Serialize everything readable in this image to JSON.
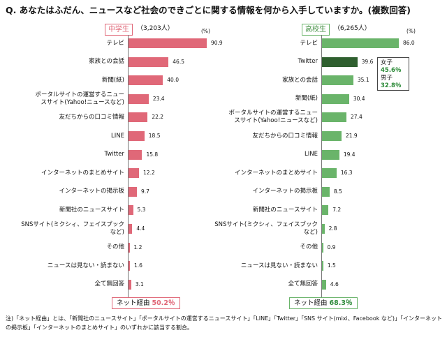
{
  "title": "Q. あなたはふだん、ニュースなど社会のできごとに関する情報を何から入手していますか。(複数回答)",
  "chart_data": [
    {
      "type": "bar",
      "orientation": "horizontal",
      "group": "中学生",
      "count": "（3,203人）",
      "unit": "(%)",
      "xlim": [
        0,
        100
      ],
      "color": "#e06878",
      "categories": [
        "テレビ",
        "家族との会話",
        "新聞(紙)",
        "ポータルサイトの運営するニュースサイト(Yahoo!ニュースなど)",
        "友だちからの口コミ情報",
        "LINE",
        "Twitter",
        "インターネットのまとめサイト",
        "インターネットの掲示板",
        "新聞社のニュースサイト",
        "SNSサイト(ミクシィ、フェイスブックなど)",
        "その他",
        "ニュースは見ない・読まない",
        "全て無回答"
      ],
      "labels": [
        [
          "テレビ"
        ],
        [
          "家族との会話"
        ],
        [
          "新聞(紙)"
        ],
        [
          "ポータルサイトの運営するニュー",
          "スサイト(Yahoo!ニュースなど)"
        ],
        [
          "友だちからの口コミ情報"
        ],
        [
          "LINE"
        ],
        [
          "Twitter"
        ],
        [
          "インターネットのまとめサイト"
        ],
        [
          "インターネットの掲示板"
        ],
        [
          "新聞社のニュースサイト"
        ],
        [
          "SNSサイト(ミクシィ、フェイスブック",
          "など)"
        ],
        [
          "その他"
        ],
        [
          "ニュースは見ない・読まない"
        ],
        [
          "全て無回答"
        ]
      ],
      "values": [
        90.9,
        46.5,
        40.0,
        23.4,
        22.2,
        18.5,
        15.8,
        12.2,
        9.7,
        5.3,
        4.4,
        1.2,
        1.6,
        3.1
      ],
      "value_labels": [
        "90.9",
        "46.5",
        "40.0",
        "23.4",
        "22.2",
        "18.5",
        "15.8",
        "12.2",
        "9.7",
        "5.3",
        "4.4",
        "1.2",
        "1.6",
        "3.1"
      ],
      "net": {
        "label": "ネット経由",
        "value": "50.2％"
      }
    },
    {
      "type": "bar",
      "orientation": "horizontal",
      "group": "高校生",
      "count": "（6,265人）",
      "unit": "(%)",
      "xlim": [
        0,
        100
      ],
      "color": "#6ab46a",
      "highlight_color": "#2f5f2f",
      "highlight_index": 1,
      "categories": [
        "テレビ",
        "Twitter",
        "家族との会話",
        "新聞(紙)",
        "ポータルサイトの運営するニュースサイト(Yahoo!ニュースなど)",
        "友だちからの口コミ情報",
        "LINE",
        "インターネットのまとめサイト",
        "インターネットの掲示板",
        "新聞社のニュースサイト",
        "SNSサイト(ミクシィ、フェイスブックなど)",
        "その他",
        "ニュースは見ない・読まない",
        "全て無回答"
      ],
      "labels": [
        [
          "テレビ"
        ],
        [
          "Twitter"
        ],
        [
          "家族との会話"
        ],
        [
          "新聞(紙)"
        ],
        [
          "ポータルサイトの運営するニュー",
          "スサイト(Yahoo!ニュースなど)"
        ],
        [
          "友だちからの口コミ情報"
        ],
        [
          "LINE"
        ],
        [
          "インターネットのまとめサイト"
        ],
        [
          "インターネットの掲示板"
        ],
        [
          "新聞社のニュースサイト"
        ],
        [
          "SNSサイト(ミクシィ、フェイスブック",
          "など)"
        ],
        [
          "その他"
        ],
        [
          "ニュースは見ない・読まない"
        ],
        [
          "全て無回答"
        ]
      ],
      "values": [
        86.0,
        39.6,
        35.1,
        30.4,
        27.4,
        21.9,
        19.4,
        16.3,
        8.5,
        7.2,
        2.8,
        0.9,
        1.5,
        4.6
      ],
      "value_labels": [
        "86.0",
        "39.6",
        "35.1",
        "30.4",
        "27.4",
        "21.9",
        "19.4",
        "16.3",
        "8.5",
        "7.2",
        "2.8",
        "0.9",
        "1.5",
        "4.6"
      ],
      "net": {
        "label": "ネット経由",
        "value": "68.3％"
      }
    }
  ],
  "callout": {
    "female_label": "女子",
    "female_value": "45.6％",
    "male_label": "男子",
    "male_value": "32.8％"
  },
  "note": "注)「ネット経由」とは、「新聞社のニュースサイト」「ポータルサイトの運営するニュースサイト」「LINE」「Twitter」「SNS サイト(mixi、Facebook など)」「インターネットの掲示板」「インターネットのまとめサイト」のいずれかに該当する割合。"
}
